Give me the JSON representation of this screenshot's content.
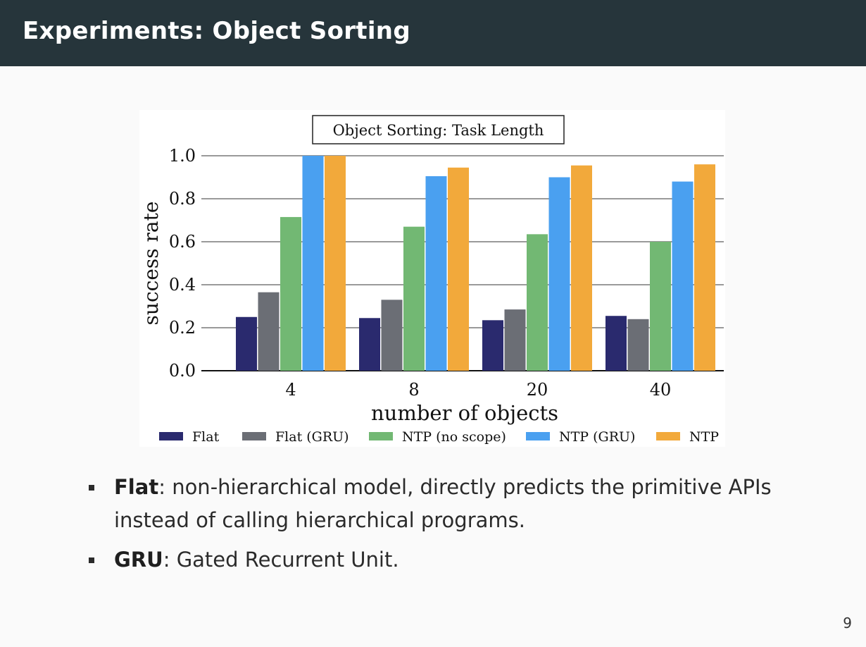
{
  "slide": {
    "title": "Experiments: Object Sorting",
    "page_number": "9"
  },
  "bullets": [
    {
      "term": "Flat",
      "sep": ": ",
      "text": "non-hierarchical model, directly predicts the primitive APIs instead of calling hierarchical programs."
    },
    {
      "term": "GRU",
      "sep": ": ",
      "text": "Gated Recurrent Unit."
    }
  ],
  "chart_data": {
    "type": "bar",
    "title": "Object Sorting: Task Length",
    "xlabel": "number of objects",
    "ylabel": "success rate",
    "categories": [
      "4",
      "8",
      "20",
      "40"
    ],
    "ylim": [
      0,
      1.0
    ],
    "yticks": [
      0.0,
      0.2,
      0.4,
      0.6,
      0.8,
      1.0
    ],
    "ytick_labels": [
      "0.0",
      "0.2",
      "0.4",
      "0.6",
      "0.8",
      "1.0"
    ],
    "grid": true,
    "legend_position": "bottom",
    "series": [
      {
        "name": "Flat",
        "color": "#2a2a6e",
        "values": [
          0.25,
          0.245,
          0.235,
          0.255
        ]
      },
      {
        "name": "Flat (GRU)",
        "color": "#6b6e75",
        "values": [
          0.365,
          0.33,
          0.285,
          0.24
        ]
      },
      {
        "name": "NTP (no scope)",
        "color": "#72b873",
        "values": [
          0.715,
          0.67,
          0.635,
          0.6
        ]
      },
      {
        "name": "NTP (GRU)",
        "color": "#4aa0f0",
        "values": [
          1.0,
          0.905,
          0.9,
          0.88
        ]
      },
      {
        "name": "NTP",
        "color": "#f2a93b",
        "values": [
          1.0,
          0.945,
          0.955,
          0.96
        ]
      }
    ]
  }
}
